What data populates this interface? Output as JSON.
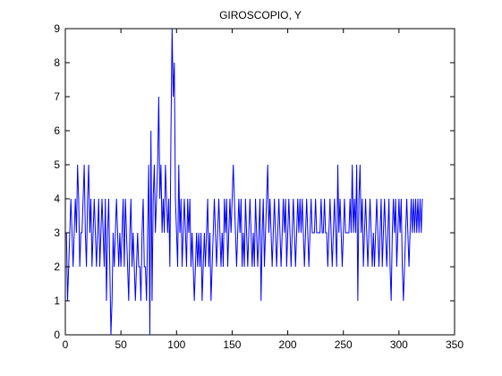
{
  "chart_data": {
    "type": "line",
    "title": "GIROSCOPIO, Y",
    "xlabel": "",
    "ylabel": "",
    "xlim": [
      0,
      350
    ],
    "ylim": [
      0,
      9
    ],
    "xticks": [
      0,
      50,
      100,
      150,
      200,
      250,
      300,
      350
    ],
    "yticks": [
      0,
      1,
      2,
      3,
      4,
      5,
      6,
      7,
      8,
      9
    ],
    "grid": false,
    "legend": "none",
    "line_color": "#0000ff",
    "series": [
      {
        "values": [
          3,
          1,
          2,
          3,
          4,
          3,
          2,
          3,
          4,
          3,
          5,
          4,
          2,
          3,
          3,
          4,
          5,
          3,
          2,
          4,
          5,
          3,
          4,
          2,
          3,
          4,
          3,
          2,
          3,
          4,
          2,
          3,
          4,
          3,
          2,
          4,
          1,
          3,
          4,
          2,
          0,
          1,
          3,
          2,
          3,
          4,
          3,
          2,
          3,
          2,
          3,
          4,
          2,
          4,
          3,
          2,
          1,
          3,
          4,
          2,
          3,
          2,
          1,
          2,
          3,
          2,
          2,
          1,
          3,
          4,
          2,
          2,
          1,
          3,
          5,
          0,
          6,
          1,
          4,
          5,
          3,
          4,
          5,
          7,
          4,
          5,
          3,
          4,
          3,
          5,
          4,
          3,
          4,
          2,
          6,
          9,
          7,
          8,
          4,
          3,
          2,
          5,
          3,
          4,
          2,
          3,
          4,
          3,
          2,
          4,
          3,
          4,
          2,
          3,
          2,
          1,
          2,
          3,
          2,
          3,
          2,
          3,
          1,
          2,
          3,
          2,
          3,
          4,
          2,
          3,
          1,
          2,
          3,
          4,
          3,
          2,
          3,
          4,
          3,
          2,
          3,
          2,
          4,
          3,
          4,
          2,
          3,
          4,
          3,
          4,
          5,
          4,
          3,
          2,
          3,
          4,
          3,
          4,
          2,
          3,
          2,
          4,
          3,
          2,
          3,
          4,
          3,
          2,
          3,
          2,
          4,
          3,
          2,
          3,
          4,
          1,
          3,
          4,
          2,
          3,
          4,
          5,
          3,
          4,
          3,
          2,
          3,
          4,
          3,
          2,
          3,
          4,
          3,
          2,
          3,
          4,
          3,
          4,
          2,
          3,
          4,
          3,
          2,
          3,
          4,
          3,
          2,
          3,
          4,
          3,
          4,
          3,
          4,
          3,
          2,
          3,
          4,
          3,
          2,
          3,
          4,
          3,
          3,
          3,
          4,
          3,
          3,
          3,
          3,
          4,
          3,
          3,
          4,
          3,
          3,
          2,
          3,
          4,
          3,
          2,
          3,
          4,
          3,
          2,
          5,
          3,
          4,
          3,
          2,
          3,
          4,
          3,
          3,
          3,
          3,
          4,
          3,
          5,
          3,
          4,
          3,
          5,
          1,
          4,
          5,
          3,
          4,
          2,
          3,
          4,
          3,
          2,
          3,
          4,
          3,
          2,
          3,
          2,
          3,
          4,
          3,
          2,
          3,
          4,
          2,
          3,
          4,
          3,
          2,
          3,
          4,
          2,
          1,
          3,
          4,
          3,
          4,
          2,
          3,
          4,
          3,
          4,
          2,
          1,
          2,
          3,
          4,
          3,
          2,
          3,
          4,
          3,
          4,
          3,
          4,
          3,
          4,
          3,
          4,
          3,
          4
        ]
      }
    ]
  }
}
